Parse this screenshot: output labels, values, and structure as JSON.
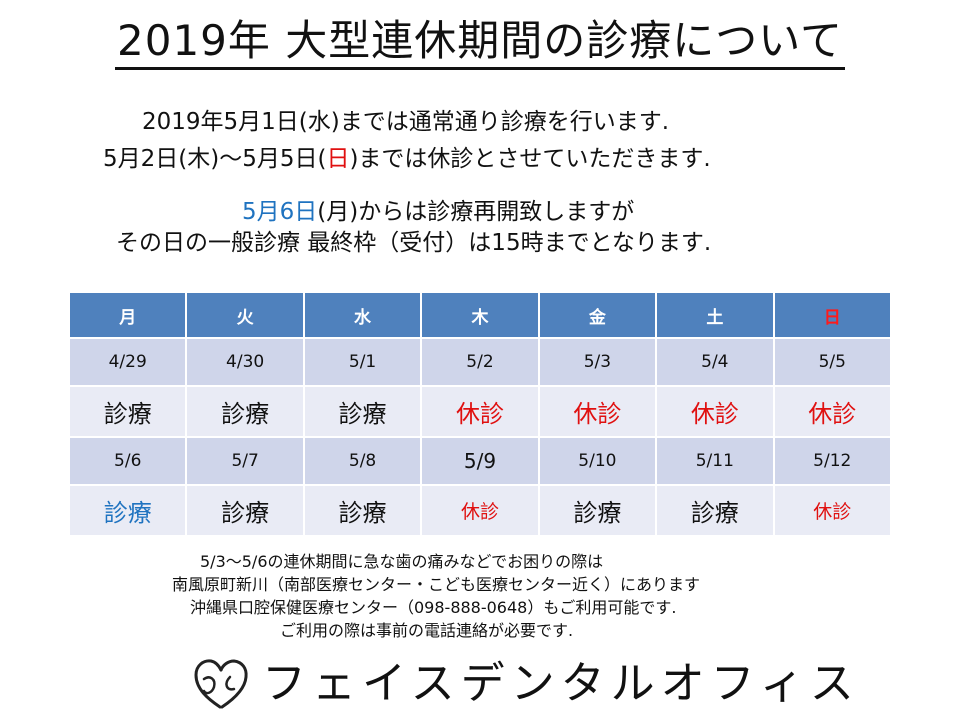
{
  "title": "2019年 大型連休期間の診療について",
  "notice": {
    "line1": "2019年5月1日(水)までは通常通り診療を行います.",
    "line2_a": "5月2日(木)～5月5日(",
    "line2_red": "日",
    "line2_b": ")までは休診とさせていただきます.",
    "line3_blue": "5月6日",
    "line3_rest": "(月)からは診療再開致しますが",
    "line4": "その日の一般診療 最終枠（受付）は15時までとなります."
  },
  "table": {
    "days": [
      "月",
      "火",
      "水",
      "木",
      "金",
      "土",
      "日"
    ],
    "week1_dates": [
      "4/29",
      "4/30",
      "5/1",
      "5/2",
      "5/3",
      "5/4",
      "5/5"
    ],
    "week1_status": [
      "診療",
      "診療",
      "診療",
      "休診",
      "休診",
      "休診",
      "休診"
    ],
    "week2_dates": [
      "5/6",
      "5/7",
      "5/8",
      "5/9",
      "5/10",
      "5/11",
      "5/12"
    ],
    "week2_status": [
      "診療",
      "診療",
      "診療",
      "休診",
      "診療",
      "診療",
      "休診"
    ]
  },
  "footer": {
    "line1": "5/3～5/6の連休期間に急な歯の痛みなどでお困りの際は",
    "line2": "南風原町新川（南部医療センター・こども医療センター近く）にあります",
    "line3": "沖縄県口腔保健医療センター（098-888-0648）もご利用可能です.",
    "line4": "ご利用の際は事前の電話連絡が必要です."
  },
  "brand": "フェイスデンタルオフィス",
  "colors": {
    "red": "#e01010",
    "blue": "#1f73c0",
    "header_bg": "#4f81bd",
    "date_bg": "#cfd5ea",
    "status_bg": "#e9ebf5"
  }
}
